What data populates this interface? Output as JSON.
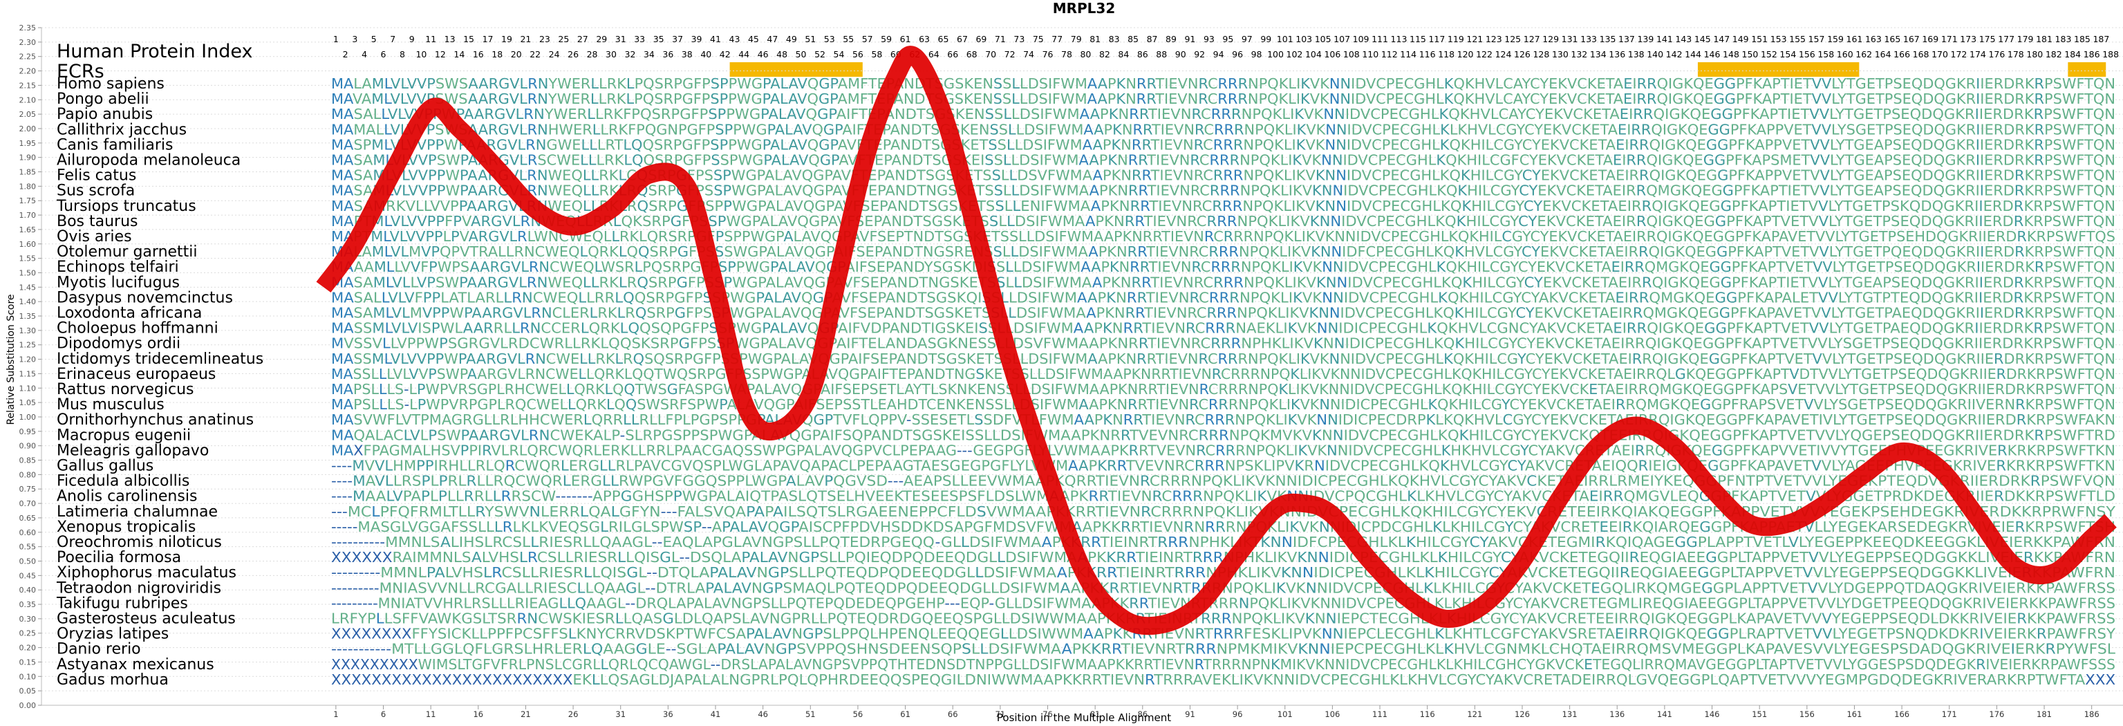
{
  "chart_data": {
    "type": "sequence_alignment_with_score_curve",
    "title": "MRPL32",
    "xlabel": "Position in the Multiple Alignment",
    "ylabel": "Relative Substitution Score",
    "yticks": [
      "0.00",
      "0.05",
      "0.10",
      "0.15",
      "0.20",
      "0.25",
      "0.30",
      "0.35",
      "0.40",
      "0.45",
      "0.50",
      "0.55",
      "0.60",
      "0.65",
      "0.70",
      "0.75",
      "0.80",
      "0.85",
      "0.90",
      "0.95",
      "1.00",
      "1.05",
      "1.10",
      "1.15",
      "1.20",
      "1.25",
      "1.30",
      "1.35",
      "1.40",
      "1.45",
      "1.50",
      "1.55",
      "1.60",
      "1.65",
      "1.70",
      "1.75",
      "1.80",
      "1.85",
      "1.90",
      "1.95",
      "2.00",
      "2.05",
      "2.10",
      "2.15",
      "2.20",
      "2.25",
      "2.30",
      "2.35"
    ],
    "ylim": [
      0,
      2.35
    ],
    "xticks": [
      "1",
      "6",
      "11",
      "16",
      "21",
      "26",
      "31",
      "36",
      "41",
      "46",
      "51",
      "56",
      "61",
      "66",
      "71",
      "76",
      "81",
      "86",
      "91",
      "96",
      "101",
      "106",
      "111",
      "116",
      "121",
      "126",
      "131",
      "136",
      "141",
      "146",
      "151",
      "156",
      "161",
      "166",
      "171",
      "176",
      "181",
      "186"
    ],
    "alignment_length": 188,
    "header_label": "Human Protein Index",
    "ecr_label": "ECRs",
    "ecr_color": "#f5b800",
    "ecr_regions": [
      [
        43,
        56
      ],
      [
        145,
        161
      ],
      [
        184,
        187
      ]
    ],
    "curve_color": "#e00000",
    "score_curve": [
      [
        0,
        1.45
      ],
      [
        3,
        1.6
      ],
      [
        7,
        1.85
      ],
      [
        11,
        2.07
      ],
      [
        14,
        2.0
      ],
      [
        18,
        1.86
      ],
      [
        22,
        1.72
      ],
      [
        26,
        1.66
      ],
      [
        30,
        1.72
      ],
      [
        34,
        1.84
      ],
      [
        38,
        1.8
      ],
      [
        41,
        1.45
      ],
      [
        44,
        1.05
      ],
      [
        47,
        0.95
      ],
      [
        51,
        1.08
      ],
      [
        54,
        1.5
      ],
      [
        57,
        1.92
      ],
      [
        60,
        2.18
      ],
      [
        62,
        2.25
      ],
      [
        65,
        2.05
      ],
      [
        68,
        1.7
      ],
      [
        72,
        1.2
      ],
      [
        76,
        0.8
      ],
      [
        80,
        0.45
      ],
      [
        84,
        0.3
      ],
      [
        88,
        0.28
      ],
      [
        92,
        0.35
      ],
      [
        96,
        0.52
      ],
      [
        100,
        0.68
      ],
      [
        103,
        0.7
      ],
      [
        106,
        0.66
      ],
      [
        110,
        0.5
      ],
      [
        114,
        0.37
      ],
      [
        118,
        0.3
      ],
      [
        122,
        0.35
      ],
      [
        126,
        0.5
      ],
      [
        130,
        0.72
      ],
      [
        134,
        0.9
      ],
      [
        138,
        0.97
      ],
      [
        142,
        0.9
      ],
      [
        146,
        0.75
      ],
      [
        150,
        0.63
      ],
      [
        154,
        0.63
      ],
      [
        158,
        0.7
      ],
      [
        162,
        0.8
      ],
      [
        166,
        0.88
      ],
      [
        170,
        0.82
      ],
      [
        174,
        0.65
      ],
      [
        178,
        0.48
      ],
      [
        182,
        0.46
      ],
      [
        186,
        0.58
      ],
      [
        188,
        0.64
      ]
    ],
    "species": [
      "Homo sapiens",
      "Pongo abelii",
      "Papio anubis",
      "Callithrix jacchus",
      "Canis familiaris",
      "Ailuropoda melanoleuca",
      "Felis catus",
      "Sus scrofa",
      "Tursiops truncatus",
      "Bos taurus",
      "Ovis aries",
      "Otolemur garnettii",
      "Echinops telfairi",
      "Myotis lucifugus",
      "Dasypus novemcinctus",
      "Loxodonta africana",
      "Choloepus hoffmanni",
      "Dipodomys ordii",
      "Ictidomys tridecemlineatus",
      "Erinaceus europaeus",
      "Rattus norvegicus",
      "Mus musculus",
      "Ornithorhynchus anatinus",
      "Macropus eugenii",
      "Meleagris gallopavo",
      "Gallus gallus",
      "Ficedula albicollis",
      "Anolis carolinensis",
      "Latimeria chalumnae",
      "Xenopus tropicalis",
      "Oreochromis niloticus",
      "Poecilia formosa",
      "Xiphophorus maculatus",
      "Tetraodon nigroviridis",
      "Takifugu rubripes",
      "Gasterosteus aculeatus",
      "Oryzias latipes",
      "Danio rerio",
      "Astyanax mexicanus",
      "Gadus morhua"
    ],
    "sequences": [
      "MALAMLVLVVPSWSAARGVLRNYWERLLRKLPQSRPGFPSPPWGPALAVQGPAMFTEPANDTSGSKENSSLLDSIFWMAAPKNRRTIEVNRCRRRNPQKLIKVKNNIDVCPECGHLKQKHVLCAYCYEKVCKETAEIRRQIGKQEGGPFKAPTIETVVLYTGETPSEQDQGKRIIERDRKRPSWFTQN",
      "MAVAMLVLVVPSWSAARGVLRNYWERLLRKLPQSRPGFPSPPWGPALAVQGPAMFTEPANDTSGSKENSSLLDSIFWMAAPKNRRTIEVNRCRRRNPQKLIKVKNNIDVCPECGHLKQKHVLCAYCYEKVCKETAEIRRQIGKQEGGPFKAPTIETVVLYTGETPSEQDQGKRIIERDRKRPSWFTQN",
      "MASALLVLVVPPWPAARGVLRNYWERLLRKFPQSRPGFPSPPWGPALAVQGPAIFTEPANDTSGSKENSSLLDSIFWMAAPKNRRTIEVNRCRRRNPQKLIKVKNNIDVCPECGHLKQKHVLCAYCYEKVCKETAEIRRQIGKQEGGPFKAPTIETVVLYTGETPSEQDQGKRIIERDRKRPSWFTQN",
      "MAMALLVLVVPSWSAARGVLRNHWERLLRKFPQGNPGFPSPPWGPALAVQGPAIFTEPANDTSGSKENSSLLDSIFWMAAPKNRRTIEVNRCRRRNPQKLIKVKNNIDVCPECGHLKLKHVLCGYCYEKVCKETAEIRRQIGKQEGGPFKAPPVETVVLYSGETPSEQDQGKRIIERDRKRPSWFTQN",
      "MASPMLVLVVPPWPAARGVLRNGWELLLRTLQQSRPGFPSPPWGPALAVQGPAVFTEPANDTSGSKETSSLLDSIFWMAAPKNRRTIEVNRCRRRNPQKLIKVKNNIDVCPECGHLKQKHILCGYCYEKVCKETAEIRRQIGKQEGGPFKAPPVETVVLYTGEAPSEQDQGKRIIERDRKRPSWFTQN",
      "MASAMLVLVVPSWPAARGVLRSCWELLLRKLQQSRPGFPSSPWGPALAVQGPAVFTEPANDTSGSKEISSLLDSIFWMAAPKNRRTIEVNRCRRRNPQKLIKVKNNIDVCPECGHLKQKHILCGFCYEKVCKETAEIRRQIGKQEGGPFKAPSMETVVLYTGEAPSEQDQGKRIIERDRKRPSWFTQN",
      "MASAMLVLVVPPWPAARGVLRNWEQLLRKLCQSRPGFPSSPWGPALAVQGPAVFTEPANDTSGSKETSSLLDSVFWMAAPKNRRTIEVNRCRRRNPQKLIKVKNNIDVCPECGHLKQKHILCGYCYEKVCKETAEIRRQIGKQEGGPFKAPPVETVVLYTGEAPSEQDQGKRIIERDRKRPSWFTQN",
      "MASAMLVLVVPPWPAARGVLRNWEQLLRKLRQSRPGFPSSPWGPALAVQGPAVFTEPANDTNGSKETSSLLDSIFWMAAPKNRRTIEVNRCRRRNPQKLIKVKNNIDVCPECGHLKQKHILCGYCYEKVCKETAEIRRQMGKQEGGPFKAPTIETVVLYTGEAPSEQDQGKRIIERDRKRPSWFTQN",
      "MASAMRKVLLVVPPAARGVLRNWEQLLRKLRQSRPGFPSPPWGPALAVQGPAVFSEPANDTSGSKETSSLLENIFWMAAPKNRRTIEVNRCRRRNPQKLIKVKNNIDVCPECGHLKQKHILCGYCYEKVCKETAEIRRQIGKQEGGPFKAPTIETVVLYTGETPSKQDQGKRIIERDRKRPSWFTQN",
      "MAPTMLVLVVPPFPVARGVLRNWEQLLRRLQKSRPGFPSSPWGPALAVQGPAVFSEPANDTSGSKETSSLLDSIFWMAAPKNRRTIEVNRCRRRNPQKLIKVKNNIDVCPECGHLKQKHILCGYCYEKVCKETAEIRRQIGKQEGGPFKAPTVETVVLYTGETPSEQDQGKRIIERDRKRPSWFTQN",
      "MAPTMLVLVVPPLPVARGVLRLWNCWEQLLRKLQRSRPGFPSPPWGPALAVQGPAVFSEPTNDTSGSKETSSLLDSIFWMAAPKNRRTIEVNRCRRRNPQKLIKVKNNIDVCPECGHLKQKHILCGYCYEKVCKETAEIRRQIGKQEGGPFKAPAVETVVLYTGETPSEHDQGKRIIERDRKRPSWFTQS",
      "MALAMLVLMVPQPVTRALLRNCWEQLQRKLQQSRPGFPSSSWGPALAVQGPAIFSEPANDTNGSRENSSLLDSIFWMAAPKNRRTIEVNRCRRRNPQKLIKVKNNIDFCPECGHLKQKHVLCGYCYEKVCKETAEIRRQIGKQEGGPFKAPTVETVVLYTGETPQEQDQGKRIIERDRKRPSWFTQN",
      "MAAAMLLVVFPWPSAARGVLRNCWEQLWSRLPQSRPGFPSPPWGPALAVQGPAIFSEPANDYSGSKDISSLLDSIFWMAAPKNRRTIEVNRCRRRNPQKLIKVKNNIDVCPECGHLKQKHILCGYCYEKVCKETAEIRRQMGKQEGGPFKAPTVETVVLYTGETPSEQDQGKRIIERDRKRPSWFTQN",
      "MASAMLVLLVPSWPAARGVLRNWEQLLRKLRQSRPGFPSSPWGPALAVQGPAVFSEPANDTNGSKETSSLLDSIFWMAAPKNRRTIEVNRCRRRNPQKLIKVKNNIDVCPECGHLKQKHILCGYCYEKVCKETAEIRRQIGKQEGGPFKAPTIETVVLYTGEAPSEQDQGKRIIERDRKRPSWFTQN",
      "MASALLVLVFPPLATLARLLRNCWEQLLRRLQQSRPGFPSSPWGPALAVQGPAVFSEPANDTSGSKQISSLLDSIFWMAAPKNRRTIEVNRCRRRNPQKLIKVKNNIDVCPECGHLKQKHILCGYCYAKVCKETAEIRRQMGKQEGGPFKAPALETVVLYTGTPTEQDQGKRIIERDRKRPSWFTQN",
      "MASAMLVLMVPPWPAARGVLRNCLERLRKLRQSRPGFPSSPWGPALAVQGPAVFSEPANDTSGSKETSSLLDSIFWMAAPKNRRTIEVNRCRRRNPQKLIKVKNNIDVCPECGHLKQKHILCGYCYEKVCKETAEIRRQMGKQEGGPFKAPAVETVVLYTGETPAEQDQGKRIIERDRKRPSWFTQN",
      "MASSMLVLVISPWLAARRLLRNCCERLQRKLQQSQPGFPSSPWGPALAVQGPAIFVDPANDTIGSKEISSLLDSIFWMAAPKNRRTIEVNRCRRRNAEKLIKVKNNIDICPECGHLKQKHVLCGNCYAKVCKETAEIRRQIGKQEGGPFKAPTVETVVLYTGETPAEQDQGKRIIERDRKRPSWFTQN",
      "MVSSVLLVPPWPSGRGVLRDCWRLLRKLQQSKSRPGFPSSPWGPALAVQGPAIFTELANDASGKNESSLLDSVFWMAAPKNRRTIEVNRCRRRNPHKLIKVKNNIDICPECGHLKQKHILCGYCYEKVCKETAEIRRQIGKQEGGPFKAPTVETVVLYSGETPSEQDQGKRIIERDRKRPSWFTQN",
      "MASSMLVLVVPPWPAARGVLRNCWELLRKLRQSQSRPGFPSSPWGPALAVQGPAIFSEPANDTSGSKETSSLLDSIFWMAAPKNRRTIEVNRCRRRNPQKLIKVKNNIDVCPECGHLKQKHILCGYCYEKVCKETAEIRRQIGKQEGGPFKAPTVETVVLYTGETPSEQDQGKRIIERDRKRPSWFTQN",
      "MASSLLLVLVVPSWPAARGVLRNCWELLQRKLQQTWQSRPGFPSSPWGPALAVQGPAIFTEPANDTNGSKETSSLLDSIFWMAAPKNRRTIEVNRCRRRNPQKLIKVKNNIDVCPECGHLKQKHILCGYCYEKVCKETAEIRRQLGKQEGGPFKAPTVDTVVLYTGETPSEQDQGKRIIERDRKRPSWFTQN",
      "MAPSLLLS-LPWPVRSGPLRHCWELLQRKLQQTWSGFASPGWAPALAVQGPAIFSEPSETLAYTLSKNKENSSLLDSIFWMAAPKNRRTIEVNRCRRRNPQKLIKVKNNIDVCPECGHLKQKHILCGYCYEKVCKETAEIRRQMGKQEGGPFKAPSVETVVLYTGETPSEQDQGKRIIERDRKRPSWFTQN",
      "MAPSLLLS-LPWPVRPGPLRQCWELLQRKLQQSWSRFSPWPALAVQGPAIFSEPSSTLEAHDTCENKENSSLLDSIFWMAAPKNRRTIEVNRCRRRNPQKLIKVKNNIDICPECGHLKQKHILCGYCYEKVCKETAEIRRQMGKQEGGPFRAPSVETVVLYSGETPSEQDQGKRIIVERNRKRPSWFTQN",
      "MASVWFLVTPMAGRGLLRLHHCWERLQRRLLRLLFPLPGPSPPGPALAVQGPTVFLQPPV-SSESETLSSDFVTLFWMAAPKNRRTIEVNRCRRRNPQKLIKVKNNIDICPECDRPKLKQKHVLCGYCYEKVCKETAEIRRQIGKQEGGPFKAPAVETIVLYTGETPSEQDQGKRIIERDRKRPSWFAKN",
      "MAQALACLVLPSWPAARGVLRNCWEKALP-SLRPGSPPSPWGPALAVQGPAIFSQPANDTSGSKEISSLLDSIFWMAAPKNRRTVEVNRCRRRNPQKMVKVKNNIDVCPECGHLKQKHILCGYCYEKVCKQTEEIRRQIGKQEGGPFKAPTVETVVLYQGEPSEQDQGKRIIERDRKRPSWFTRD",
      "MAXFPAGMALHSVPPIRVLRLQRCWQRLERKLLRRLPAACGAQSSWPGPALAVQGPVCLPEPAAG---GEGPGFLYLVWMAAPKRRTVEVNRCRRRNPQKLIKVKNNIDVCPECGHLKHKHVLCGYCYAKVCRETAEIRRQIGKQEGGPFKAPVVETIVVYTGEEPHVPEEGKRIVERKRKRPSWFTKN",
      "----MVVLHMPPIRHLLRLQRCWQRLERGLLRLPAVCGVQSPLWGLAPAVQAPACLPEPAAGTAESGEGPGFLYLVWMAAPKRRTVEVNRCRRRNPSKLIPVKRNIDVCPECGHLKQKHVLCGYCYAKVCRETAEIQQRIEIGKQEGGPFKAPAVETVVLYAGEEPHVPEEGKRIVERKRKRPSWFTKN",
      "----MAVLLRSPLPRLRLLRQCWQRLERGLLRWPGVFGGQSPPLWGPALAVPQGVSD---AEAPSLLEEVWMAAPKQRRTIEVNRCRRRNPQKLIKVKNNIDICPECGHLKQKHVLCGYCYAKVCKETAEIRRLRMEIYKEQGGPFNTPTVETVVLYEGEKPTEQDVGKRIIERDRKRPSWFVQN",
      "----MAALVPAPLPLLRRLLRRSCW-------APPGGHSPPWGPALAIQTPASLQTSELHVEEKTESEESPSFLDSLWMAAPKRRTIEVNRCRRRNPQKLIKVKNNIDVCPQCGHLKLKHVLCGYCYAKVCKETAEIRRQMGVLEQGGPFKAPTVETVVLYGGETPRDKDEGKRIIERDKKRPSWFTLD",
      "---MCLPFQFRMLTLLRYSWVNLERRLQALGFYN---FALSVQAPAPAILSQTSLRGAEENEPPCFLDSVWMAAPKKRRTIEVNRCRRRNPQKLIKVKNNIDVCPECGHLKQKHILCGYCYEKVCRETEEIRKQIAKQEGGPFKAPPVETVVVYEGEKPSEHDEGKRIVERDKKRPRWFNSY",
      "-----MASGLVGGAFSSLLLRLKLKVEQSGLRILGLSPWSP--APALAVQGPAISCPFPDVHSDDKDSAPGFMDSVFWMAAPKKRRTIEVNRNRRRNPQKLIKVKNNIDICPDCGHLKLKHILCGYCYAKVCRETEEIRKQIARQEGGPFKAPPAETVLLYEGEKARSEDEGKRVIVEIERKRPSWFTSH",
      "----------MMNLSALIHSLRCSLLRIESRLLQAAGL--EAQLAPGLAVNGPSLLPQTEDRPGEQQ-GLLDSIFWMAAPKKRRTIEINRTRRRNPHKLIKTKNNIDFCPECGHLKLKHILCGYCYAKVCKETEGMIRKQIQAGEGGPLAPPTVETLVLYEGEPPKEEQDKEEGGKLIVEIERKKPAWFRN",
      "XXXXXXRAIMMNLSALVHSLRCSLLRIESRLLQISGL--DSQLAPALAVNGPSLLPQIEQDPQDEEQDGLLDSIFWMAAPKKRRTIEINRTRRRNPHKLIKVKNNIDICPECGHLKLKHILCGYCYAKVCKETEGQIIREQGIAEEGGPLTAPPVETVVLYEGEPPSEQDGGKKLIVEIERKKPAWFRN",
      "---------MMNLPALVHSLRCSLLRIESRLLQISGL--DTQLAPALAVNGPSLLPQTEQDPQDEEQDGLLDSIFWMAAPKKRRTIEINRTRRRNPHKLIKVKNNIDICPECGHLKLKHILCGYCYAKVCKETEGQIIREQGIAEEGGPLTAPPVETVVLYEGEPPSEQDGGKKLIVEIERKKPAWFRN",
      "---------MNIASVVNLLRCGALLRIESCLLQAAGL--DTRLAPALAVNGPSMAQLPQTEQDPQDEEQDGLLDSIFWMAAPKKRRTIEVNRTRRRNPQKLIKVKNNIDVCPECGHLKLKHILCGYCYAKVCKETEGQLIRKQMGEGGPLAPPTVETVVLYDGEPPQTDAQGKRIVEIERKKPAWFRSS",
      "---------MNIATVVHRLRSLLLRIEAGLLQAAGL--DRQLAPALAVNGPSLLPQTEPQDEDEQPGEHP---EQP-GLLDSIFWMAAPKKRRTIEVNRTRRRNPQKLIKVKNNIDVCPECGHLKLKHILCGYCYAKVCRETEGMLIREQGIAEEGGPLTAPPVETVVLYDGETPEEQDQGKRIVEIERKKPAWFRSS",
      "LRFYPLLSFFVAWKGSLTSRRNCWSKIESRLLQASGLDLQAPSLAVNGPRLLPQTEQDRDGQEEQSPGLLDSIWWMAAPKKRRTIEINRTRRRNPQKLIKVKNNIEPCTECGHLKLKHILCGYCYAKVCRETEEIRRQIGKQEGGPLKAPAVETVVVYEGEPPSEQDLDKKRIVEIERKKPAWFRSS",
      "XXXXXXXXFFYSICKLLPPFPCSFFSLKNYCRRVDSKPTWFCSAPALAVNGPSLPPQLHPENQLEEQQEGLLDSIWWMAAPKKRRTIEVNRTRRRFESKLIPVKNNIEPCLECGHLKLKHTLCGFCYAKVSRETAEIRRQIGKQEGGPLRAPTVETVVLYEGETPSNQDKDKRIVEIERKRPAWFRSY",
      "-----------MTLLGGLQFLGRSLHRLERLQAAGGLE--SGLAPALAVNGPSVPPQSHNSDEENSQPSLLDSIFWMAAPKKRRTIEVNRTRRRNPMKMIKVKNNIEPCPECGHLKLKHVLCGNMKLCHQTAEIRRQMSVMEGGPLKAPAVESVVLYEGESPSDADQGKRIVEIERKRPYWFSL",
      "XXXXXXXXXWIMSLTGFVFRLPNSLCGRLLQRLQCQAWGL--DRSLAPALAVNGPSVPPQTHTEDNSDTNPPGLLDSIFWMAAPKKRRTIEVNRTRRRNPNKMIKVKNNIDVCPECGHLKLKHILCGHCYGKVCKETEGQLIRRQMAVGEGGPLTAPTVETVVLYGGESPSDQDEGKRIVEIERKRPAWFSSS",
      "XXXXXXXXXXXXXXXXXXXXXXXXEKLLQSAGLDJAPALALNGPRLPQLQPHRDEEQQSPEQGILDNIWWMAAPKKRRTIEVNRTRRRAVEKLIKVKNNIDVCPECGHLKLKHVLCGYCYAKVCRETADEIRRQLGVQEGGPLQAPTVETVVVYEGMPGDQDEGKRIVERARKRPTWFTAXXX"
    ]
  }
}
